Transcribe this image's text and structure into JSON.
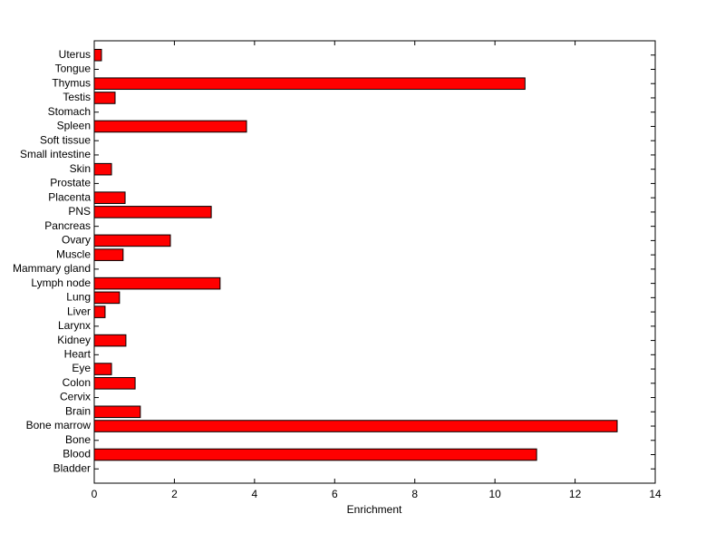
{
  "chart_data": {
    "type": "barh",
    "xlabel": "Enrichment",
    "categories": [
      "Bladder",
      "Blood",
      "Bone",
      "Bone marrow",
      "Brain",
      "Cervix",
      "Colon",
      "Eye",
      "Heart",
      "Kidney",
      "Larynx",
      "Liver",
      "Lung",
      "Lymph node",
      "Mammary gland",
      "Muscle",
      "Ovary",
      "Pancreas",
      "PNS",
      "Placenta",
      "Prostate",
      "Skin",
      "Small intestine",
      "Soft tissue",
      "Spleen",
      "Stomach",
      "Testis",
      "Thymus",
      "Tongue",
      "Uterus"
    ],
    "values": [
      0,
      11.04,
      0,
      13.05,
      1.15,
      0,
      1.02,
      0.43,
      0,
      0.79,
      0,
      0.27,
      0.63,
      3.14,
      0,
      0.72,
      1.9,
      0,
      2.92,
      0.77,
      0,
      0.43,
      0,
      0,
      3.8,
      0,
      0.52,
      10.75,
      0,
      0.18
    ],
    "color": "#ff0000",
    "xlim": [
      0,
      14
    ],
    "xticks": [
      0,
      2,
      4,
      6,
      8,
      10,
      12,
      14
    ]
  }
}
